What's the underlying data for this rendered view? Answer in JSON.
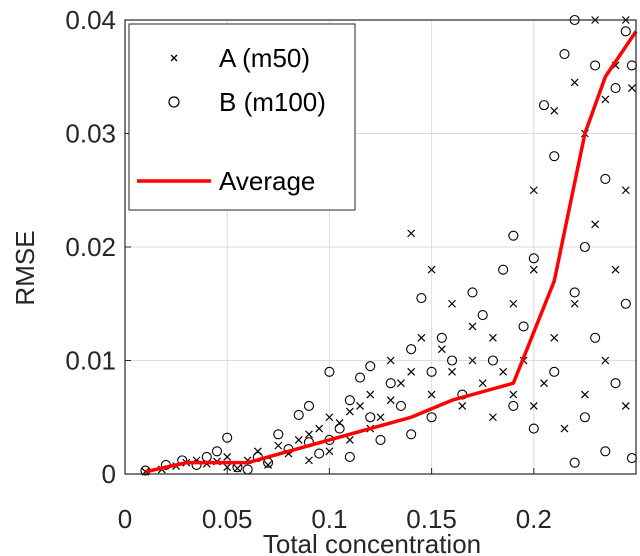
{
  "chart_data": {
    "type": "scatter",
    "xlabel": "Total concentration",
    "ylabel": "RMSE",
    "xlim": [
      0,
      0.25
    ],
    "ylim": [
      0,
      0.04
    ],
    "xticks": [
      "0",
      "0.05",
      "0.1",
      "0.15",
      "0.2"
    ],
    "xtick_values": [
      0,
      0.05,
      0.1,
      0.15,
      0.2
    ],
    "yticks": [
      "0",
      "0.01",
      "0.02",
      "0.03",
      "0.04"
    ],
    "ytick_values": [
      0,
      0.01,
      0.02,
      0.03,
      0.04
    ],
    "grid": true,
    "legend": "top-left",
    "colors": {
      "average": "#ff0000",
      "markers": "#000000",
      "grid": "#dcdcdc"
    },
    "series": [
      {
        "name": "A (m50)",
        "marker": "x",
        "points": [
          [
            0.01,
            0.0002
          ],
          [
            0.018,
            0.0004
          ],
          [
            0.025,
            0.0007
          ],
          [
            0.03,
            0.001
          ],
          [
            0.035,
            0.0012
          ],
          [
            0.04,
            0.0009
          ],
          [
            0.045,
            0.0011
          ],
          [
            0.05,
            0.0006
          ],
          [
            0.05,
            0.0015
          ],
          [
            0.055,
            0.0005
          ],
          [
            0.06,
            0.0012
          ],
          [
            0.065,
            0.002
          ],
          [
            0.07,
            0.0008
          ],
          [
            0.075,
            0.0025
          ],
          [
            0.08,
            0.0018
          ],
          [
            0.085,
            0.003
          ],
          [
            0.09,
            0.0012
          ],
          [
            0.09,
            0.0035
          ],
          [
            0.095,
            0.004
          ],
          [
            0.1,
            0.002
          ],
          [
            0.1,
            0.005
          ],
          [
            0.105,
            0.0045
          ],
          [
            0.11,
            0.0055
          ],
          [
            0.11,
            0.003
          ],
          [
            0.115,
            0.006
          ],
          [
            0.12,
            0.007
          ],
          [
            0.12,
            0.004
          ],
          [
            0.125,
            0.005
          ],
          [
            0.13,
            0.0065
          ],
          [
            0.13,
            0.01
          ],
          [
            0.135,
            0.008
          ],
          [
            0.14,
            0.009
          ],
          [
            0.14,
            0.0212
          ],
          [
            0.145,
            0.012
          ],
          [
            0.15,
            0.018
          ],
          [
            0.15,
            0.007
          ],
          [
            0.155,
            0.011
          ],
          [
            0.16,
            0.009
          ],
          [
            0.16,
            0.015
          ],
          [
            0.165,
            0.006
          ],
          [
            0.17,
            0.013
          ],
          [
            0.17,
            0.01
          ],
          [
            0.175,
            0.008
          ],
          [
            0.18,
            0.012
          ],
          [
            0.18,
            0.005
          ],
          [
            0.185,
            0.009
          ],
          [
            0.19,
            0.015
          ],
          [
            0.19,
            0.007
          ],
          [
            0.195,
            0.01
          ],
          [
            0.2,
            0.018
          ],
          [
            0.2,
            0.006
          ],
          [
            0.2,
            0.025
          ],
          [
            0.205,
            0.008
          ],
          [
            0.21,
            0.032
          ],
          [
            0.21,
            0.012
          ],
          [
            0.215,
            0.004
          ],
          [
            0.22,
            0.0345
          ],
          [
            0.22,
            0.015
          ],
          [
            0.225,
            0.03
          ],
          [
            0.225,
            0.007
          ],
          [
            0.23,
            0.04
          ],
          [
            0.23,
            0.022
          ],
          [
            0.235,
            0.033
          ],
          [
            0.235,
            0.01
          ],
          [
            0.24,
            0.036
          ],
          [
            0.24,
            0.018
          ],
          [
            0.245,
            0.04
          ],
          [
            0.245,
            0.006
          ],
          [
            0.245,
            0.025
          ],
          [
            0.248,
            0.034
          ]
        ]
      },
      {
        "name": "B (m100)",
        "marker": "o",
        "points": [
          [
            0.01,
            0.0003
          ],
          [
            0.02,
            0.0008
          ],
          [
            0.028,
            0.0012
          ],
          [
            0.035,
            0.0008
          ],
          [
            0.04,
            0.0015
          ],
          [
            0.045,
            0.002
          ],
          [
            0.05,
            0.0032
          ],
          [
            0.055,
            0.0006
          ],
          [
            0.06,
            0.0004
          ],
          [
            0.065,
            0.0015
          ],
          [
            0.07,
            0.001
          ],
          [
            0.075,
            0.0035
          ],
          [
            0.08,
            0.0022
          ],
          [
            0.085,
            0.0052
          ],
          [
            0.09,
            0.0028
          ],
          [
            0.09,
            0.006
          ],
          [
            0.095,
            0.0018
          ],
          [
            0.1,
            0.009
          ],
          [
            0.1,
            0.003
          ],
          [
            0.105,
            0.004
          ],
          [
            0.11,
            0.0065
          ],
          [
            0.11,
            0.0015
          ],
          [
            0.115,
            0.0085
          ],
          [
            0.12,
            0.0095
          ],
          [
            0.12,
            0.005
          ],
          [
            0.125,
            0.003
          ],
          [
            0.13,
            0.008
          ],
          [
            0.135,
            0.006
          ],
          [
            0.14,
            0.011
          ],
          [
            0.14,
            0.0035
          ],
          [
            0.145,
            0.0155
          ],
          [
            0.15,
            0.009
          ],
          [
            0.15,
            0.005
          ],
          [
            0.155,
            0.012
          ],
          [
            0.16,
            0.01
          ],
          [
            0.165,
            0.007
          ],
          [
            0.17,
            0.016
          ],
          [
            0.175,
            0.014
          ],
          [
            0.18,
            0.01
          ],
          [
            0.185,
            0.018
          ],
          [
            0.19,
            0.021
          ],
          [
            0.19,
            0.006
          ],
          [
            0.195,
            0.013
          ],
          [
            0.2,
            0.019
          ],
          [
            0.2,
            0.004
          ],
          [
            0.205,
            0.0325
          ],
          [
            0.21,
            0.028
          ],
          [
            0.21,
            0.009
          ],
          [
            0.215,
            0.037
          ],
          [
            0.22,
            0.04
          ],
          [
            0.22,
            0.016
          ],
          [
            0.22,
            0.001
          ],
          [
            0.225,
            0.02
          ],
          [
            0.225,
            0.005
          ],
          [
            0.23,
            0.036
          ],
          [
            0.23,
            0.012
          ],
          [
            0.235,
            0.026
          ],
          [
            0.235,
            0.002
          ],
          [
            0.24,
            0.034
          ],
          [
            0.24,
            0.008
          ],
          [
            0.245,
            0.039
          ],
          [
            0.245,
            0.015
          ],
          [
            0.248,
            0.036
          ],
          [
            0.248,
            0.0014
          ]
        ]
      },
      {
        "name": "Average",
        "type": "line",
        "x": [
          0.01,
          0.03,
          0.06,
          0.08,
          0.1,
          0.12,
          0.14,
          0.16,
          0.18,
          0.19,
          0.21,
          0.225,
          0.235,
          0.25
        ],
        "y": [
          0.0002,
          0.001,
          0.001,
          0.002,
          0.003,
          0.004,
          0.005,
          0.0065,
          0.0075,
          0.008,
          0.017,
          0.03,
          0.035,
          0.039
        ]
      }
    ]
  }
}
